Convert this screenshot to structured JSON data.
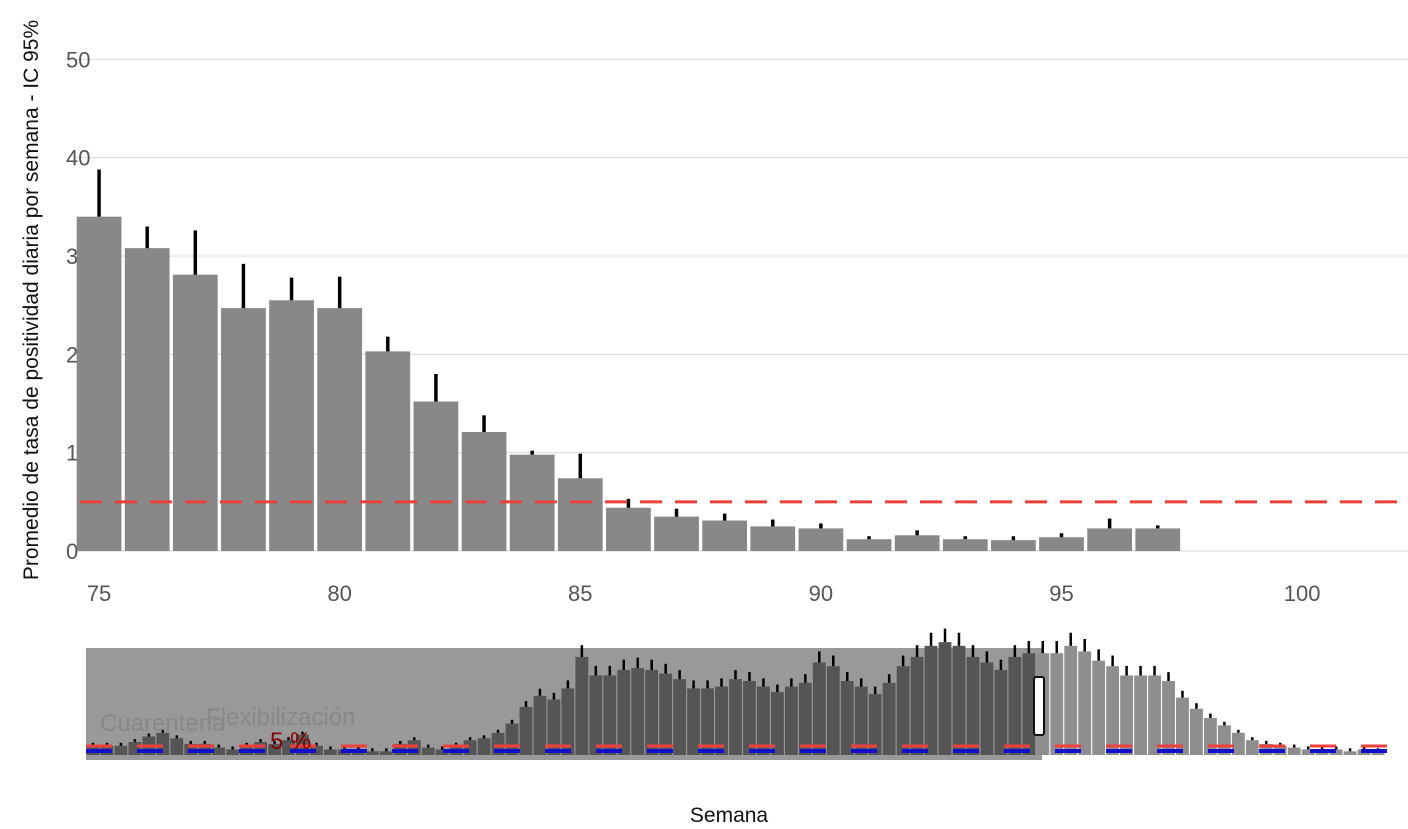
{
  "chart_data": {
    "type": "bar",
    "xlabel": "Semana",
    "ylabel": "Promedio de tasa de positividad diaria por semana - IC 95%",
    "xlim": [
      74.5,
      102.2
    ],
    "ylim": [
      0,
      54
    ],
    "xticks": [
      75,
      80,
      85,
      90,
      95,
      100
    ],
    "yticks": [
      0,
      10,
      20,
      30,
      40,
      50
    ],
    "grid": true,
    "reference_line": {
      "value": 5,
      "color": "#e8413a",
      "style": "dashed"
    },
    "x": [
      75,
      76,
      77,
      78,
      79,
      80,
      81,
      82,
      83,
      84,
      85,
      86,
      87,
      88,
      89,
      90,
      91,
      92,
      93,
      94,
      95,
      96,
      97
    ],
    "values": [
      34.0,
      30.8,
      28.1,
      24.7,
      25.5,
      24.7,
      20.3,
      15.2,
      12.1,
      9.8,
      7.4,
      4.4,
      3.5,
      3.1,
      2.5,
      2.3,
      1.2,
      1.6,
      1.2,
      1.1,
      1.4,
      2.3,
      2.3
    ],
    "ci_upper": [
      38.8,
      33.0,
      32.6,
      29.2,
      27.8,
      27.9,
      21.8,
      18.0,
      13.8,
      10.2,
      9.9,
      5.3,
      4.3,
      3.8,
      3.2,
      2.8,
      1.5,
      2.1,
      1.5,
      1.5,
      1.8,
      3.3,
      2.6
    ],
    "bar_color": "#888888",
    "overview": {
      "annotations": [
        {
          "text": "Cuarentena",
          "color": "#888888"
        },
        {
          "text": "Flexibilización",
          "color": "#888888"
        },
        {
          "text": "5 %",
          "color": "#8b0000"
        }
      ],
      "selection_color": "#999999",
      "values": [
        0.5,
        0.5,
        0.5,
        0.7,
        1.0,
        1.2,
        0.9,
        0.6,
        0.6,
        0.4,
        0.3,
        0.5,
        0.7,
        0.6,
        0.8,
        1.1,
        0.5,
        0.3,
        0.3,
        0.3,
        0.2,
        0.2,
        0.6,
        0.8,
        0.4,
        0.3,
        0.5,
        0.8,
        0.9,
        1.2,
        1.7,
        2.6,
        3.2,
        3.0,
        3.6,
        5.3,
        4.3,
        4.3,
        4.6,
        4.7,
        4.6,
        4.4,
        4.1,
        3.6,
        3.6,
        3.7,
        4.1,
        4.0,
        3.7,
        3.4,
        3.7,
        3.9,
        5.0,
        4.8,
        4.0,
        3.7,
        3.3,
        3.9,
        4.8,
        5.3,
        5.9,
        6.1,
        5.9,
        5.3,
        5.0,
        4.6,
        5.3,
        5.5,
        5.5,
        5.5,
        5.9,
        5.6,
        5.1,
        4.8,
        4.3,
        4.3,
        4.3,
        4.0,
        3.1,
        2.5,
        2.0,
        1.6,
        1.2,
        0.8,
        0.6,
        0.5,
        0.4,
        0.3,
        0.3,
        0.3,
        0.2,
        0.3,
        0.2
      ]
    }
  }
}
